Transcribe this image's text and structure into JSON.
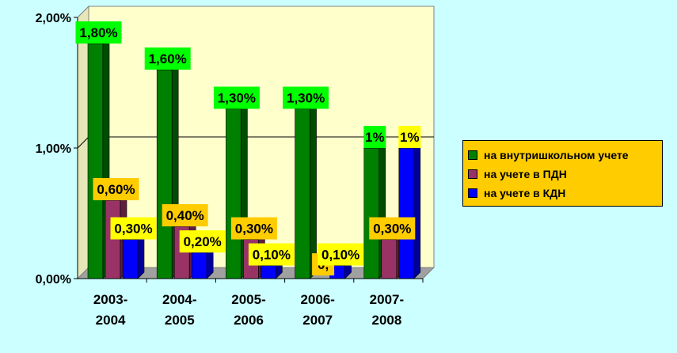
{
  "chart_data": {
    "type": "bar",
    "categories": [
      "2003-\n2004",
      "2004-\n2005",
      "2005-\n2006",
      "2006-\n2007",
      "2007-\n2008"
    ],
    "series": [
      {
        "name": "на внутришкольном учете",
        "values": [
          1.8,
          1.6,
          1.3,
          1.3,
          1.0
        ],
        "labels": [
          "1,80%",
          "1,60%",
          "1,30%",
          "1,30%",
          "1%"
        ],
        "color": "#008000",
        "label_bg": "#00ff00"
      },
      {
        "name": "на учете в ПДН",
        "values": [
          0.6,
          0.4,
          0.3,
          0.0,
          0.3
        ],
        "labels": [
          "0,60%",
          "0,40%",
          "0,30%",
          "0,",
          "0,30%"
        ],
        "color": "#993366",
        "label_bg": "#ffcc00"
      },
      {
        "name": "на учете в КДН",
        "values": [
          0.3,
          0.2,
          0.1,
          0.1,
          1.0
        ],
        "labels": [
          "0,30%",
          "0,20%",
          "0,10%",
          "0,10%",
          "1%"
        ],
        "color": "#0000ff",
        "label_bg": "#ffff00"
      }
    ],
    "yticks": [
      "0,00%",
      "1,00%",
      "2,00%"
    ],
    "ylim": [
      0,
      2.0
    ],
    "grid": true,
    "legend": "right",
    "plot_bg": "#ffffcc",
    "page_bg": "#ccffff",
    "legend_bg": "#ffcc00"
  }
}
